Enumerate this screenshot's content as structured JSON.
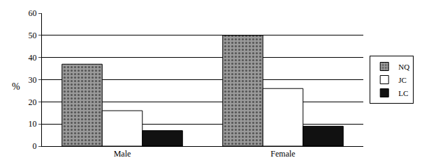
{
  "chart_data": {
    "type": "bar",
    "y_label": "%",
    "categories": [
      "Male",
      "Female"
    ],
    "series": [
      {
        "name": "NQ",
        "color": "#9a9a9a",
        "values": [
          37,
          50
        ]
      },
      {
        "name": "JC",
        "color": "#ffffff",
        "values": [
          16,
          26
        ]
      },
      {
        "name": "LC",
        "color": "#111111",
        "values": [
          7,
          9
        ]
      }
    ],
    "ylim": [
      0,
      60
    ],
    "yticks": [
      0,
      10,
      20,
      30,
      40,
      50,
      60
    ],
    "grid": true,
    "legend": "right"
  }
}
